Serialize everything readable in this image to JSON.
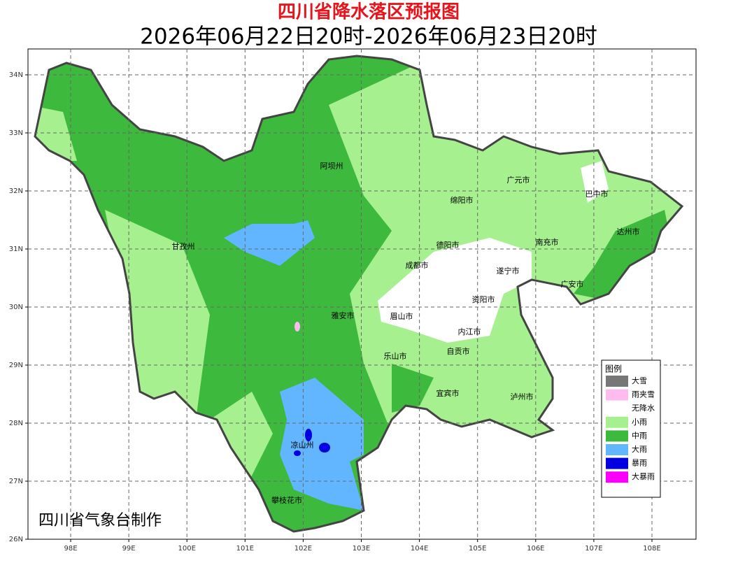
{
  "header": {
    "title": "四川省降水落区预报图",
    "subtitle": "2026年06月22日20时-2026年06月23日20时"
  },
  "map": {
    "lat_labels": [
      "34N",
      "33N",
      "32N",
      "31N",
      "30N",
      "29N",
      "28N",
      "27N",
      "26N"
    ],
    "lon_labels": [
      "98E",
      "99E",
      "100E",
      "101E",
      "102E",
      "103E",
      "104E",
      "105E",
      "106E",
      "107E",
      "108E"
    ],
    "cities": [
      {
        "label": "阿坝州"
      },
      {
        "label": "广元市"
      },
      {
        "label": "巴中市"
      },
      {
        "label": "绵阳市"
      },
      {
        "label": "达州市"
      },
      {
        "label": "甘孜州"
      },
      {
        "label": "德阳市"
      },
      {
        "label": "南充市"
      },
      {
        "label": "成都市"
      },
      {
        "label": "遂宁市"
      },
      {
        "label": "广安市"
      },
      {
        "label": "资阳市"
      },
      {
        "label": "雅安市"
      },
      {
        "label": "眉山市"
      },
      {
        "label": "内江市"
      },
      {
        "label": "自贡市"
      },
      {
        "label": "乐山市"
      },
      {
        "label": "宜宾市"
      },
      {
        "label": "泸州市"
      },
      {
        "label": "凉山州"
      },
      {
        "label": "攀枝花市"
      }
    ],
    "credit": "四川省气象台制作"
  },
  "legend": {
    "title": "图例",
    "items": [
      {
        "label": "大雪",
        "color": "#777777"
      },
      {
        "label": "雨夹雪",
        "color": "#ffbbee"
      },
      {
        "label": "无降水",
        "color": "#ffffff"
      },
      {
        "label": "小雨",
        "color": "#a6f08f"
      },
      {
        "label": "中雨",
        "color": "#3dba3d"
      },
      {
        "label": "大雨",
        "color": "#62b6ff"
      },
      {
        "label": "暴雨",
        "color": "#0000e0"
      },
      {
        "label": "大暴雨",
        "color": "#fa00fa"
      }
    ]
  }
}
